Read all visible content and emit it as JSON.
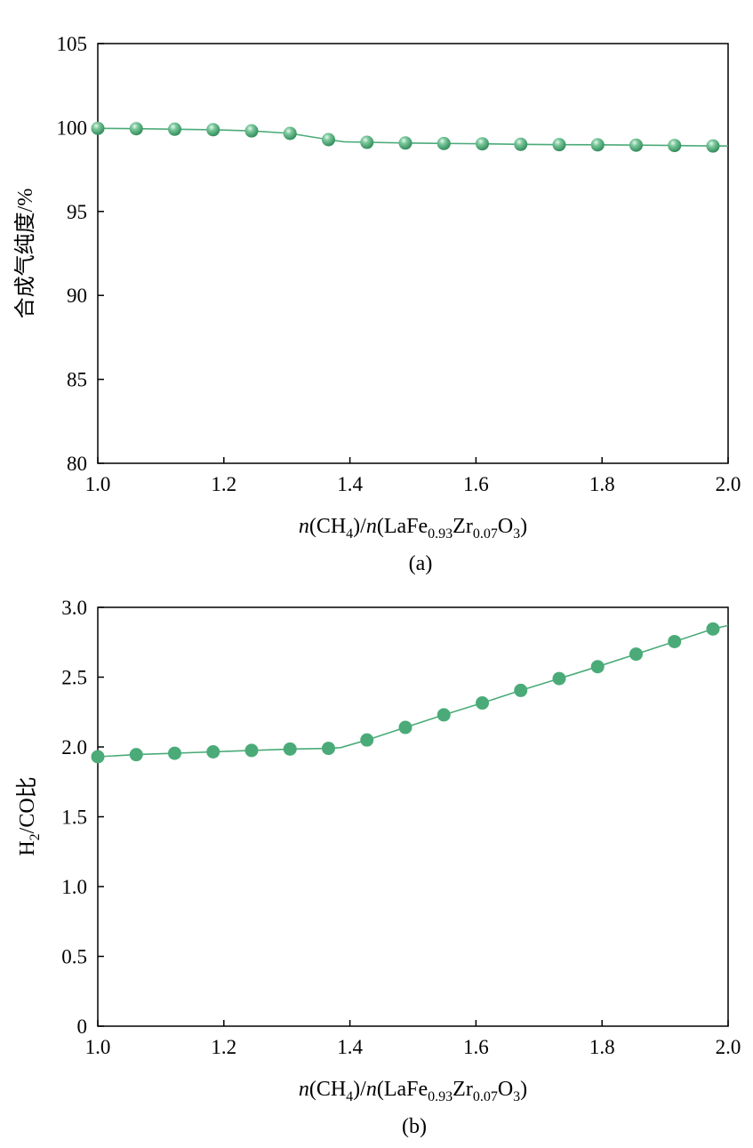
{
  "colors": {
    "series": "#4aab78",
    "axis": "#000000"
  },
  "chart_data": [
    {
      "type": "line",
      "panel_label": "(a)",
      "xlabel": {
        "var1": "n",
        "p1": "(CH",
        "s1": "4",
        "p2": ")/",
        "var2": "n",
        "p3": "(LaFe",
        "s2": "0.93",
        "p4": "Zr",
        "s3": "0.07",
        "p5": "O",
        "s4": "3",
        "p6": ")"
      },
      "ylabel": "合成气纯度/%",
      "xlim": [
        1.0,
        2.0
      ],
      "ylim": [
        80,
        105
      ],
      "xticks": [
        "1.0",
        "1.2",
        "1.4",
        "1.6",
        "1.8",
        "2.0"
      ],
      "yticks": [
        "80",
        "85",
        "90",
        "95",
        "100",
        "105"
      ],
      "marker": "sphere",
      "line_x": [
        1.0,
        1.061,
        1.122,
        1.183,
        1.244,
        1.305,
        1.366,
        1.39,
        1.427,
        1.488,
        1.549,
        1.61,
        1.671,
        1.732,
        1.793,
        1.854,
        1.915,
        1.976,
        2.0
      ],
      "line_y": [
        99.95,
        99.93,
        99.9,
        99.87,
        99.8,
        99.65,
        99.28,
        99.15,
        99.12,
        99.08,
        99.05,
        99.03,
        99.0,
        98.98,
        98.97,
        98.95,
        98.93,
        98.9,
        98.9
      ],
      "x": [
        1.0,
        1.061,
        1.122,
        1.183,
        1.244,
        1.305,
        1.366,
        1.427,
        1.488,
        1.549,
        1.61,
        1.671,
        1.732,
        1.793,
        1.854,
        1.915,
        1.976
      ],
      "y": [
        99.95,
        99.93,
        99.9,
        99.87,
        99.8,
        99.65,
        99.28,
        99.12,
        99.08,
        99.05,
        99.03,
        99.0,
        98.98,
        98.97,
        98.95,
        98.93,
        98.9
      ]
    },
    {
      "type": "line",
      "panel_label": "(b)",
      "xlabel": {
        "var1": "n",
        "p1": "(CH",
        "s1": "4",
        "p2": ")/",
        "var2": "n",
        "p3": "(LaFe",
        "s2": "0.93",
        "p4": "Zr",
        "s3": "0.07",
        "p5": "O",
        "s4": "3",
        "p6": ")"
      },
      "ylabel": {
        "p1": "H",
        "s1": "2",
        "p2": "/CO比"
      },
      "xlim": [
        1.0,
        2.0
      ],
      "ylim": [
        0,
        3.0
      ],
      "xticks": [
        "1.0",
        "1.2",
        "1.4",
        "1.6",
        "1.8",
        "2.0"
      ],
      "yticks": [
        "0",
        "0.5",
        "1.0",
        "1.5",
        "2.0",
        "2.5",
        "3.0"
      ],
      "marker": "circle",
      "line_x": [
        1.0,
        1.061,
        1.122,
        1.183,
        1.244,
        1.305,
        1.366,
        1.385,
        1.427,
        1.488,
        1.549,
        1.61,
        1.671,
        1.732,
        1.793,
        1.854,
        1.915,
        1.976,
        2.0
      ],
      "line_y": [
        1.93,
        1.945,
        1.955,
        1.965,
        1.975,
        1.985,
        1.99,
        1.995,
        2.05,
        2.14,
        2.23,
        2.315,
        2.405,
        2.49,
        2.575,
        2.665,
        2.755,
        2.845,
        2.87
      ],
      "x": [
        1.0,
        1.061,
        1.122,
        1.183,
        1.244,
        1.305,
        1.366,
        1.427,
        1.488,
        1.549,
        1.61,
        1.671,
        1.732,
        1.793,
        1.854,
        1.915,
        1.976
      ],
      "y": [
        1.93,
        1.945,
        1.955,
        1.965,
        1.975,
        1.985,
        1.99,
        2.05,
        2.14,
        2.23,
        2.315,
        2.405,
        2.49,
        2.575,
        2.665,
        2.755,
        2.845
      ]
    }
  ]
}
